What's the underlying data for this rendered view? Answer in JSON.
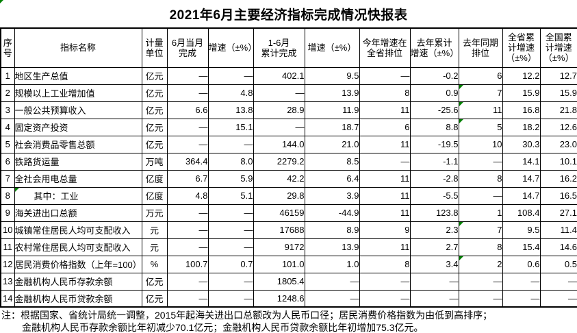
{
  "title": "2021年6月主要经济指标完成情况快报表",
  "table": {
    "headers": [
      "序\n号",
      "指标名称",
      "计量\n单位",
      "6月当月\n完成",
      "增速（±%）",
      "1-6月\n累计完成",
      "增速（±%）",
      "今年增速在\n全省排位",
      "去年累计\n增速（±%）",
      "去年同期\n排位",
      "全省累\n计增速\n（±%）",
      "全国累\n计增速\n（±%）"
    ],
    "rows": [
      {
        "no": "1",
        "name": "地区生产总值",
        "unit": "亿元",
        "indent": false,
        "values": [
          "—",
          "—",
          "402.1",
          "9.5",
          "—",
          "-0.2",
          "6",
          "12.2",
          "12.7"
        ],
        "markers": []
      },
      {
        "no": "2",
        "name": "规模以上工业增加值",
        "unit": "亿元",
        "indent": false,
        "values": [
          "—",
          "4.8",
          "—",
          "13.9",
          "8",
          "0.9",
          "7",
          "15.9",
          "15.9"
        ],
        "markers": [
          9
        ]
      },
      {
        "no": "3",
        "name": "一般公共预算收入",
        "unit": "亿元",
        "indent": false,
        "values": [
          "6.6",
          "13.8",
          "28.9",
          "11.9",
          "11",
          "-25.6",
          "11",
          "16.8",
          "21.8"
        ],
        "markers": [
          9
        ]
      },
      {
        "no": "4",
        "name": "固定资产投资",
        "unit": "亿元",
        "indent": false,
        "values": [
          "—",
          "15.1",
          "—",
          "18.7",
          "6",
          "8.8",
          "5",
          "18.2",
          "12.6"
        ],
        "markers": [
          9
        ]
      },
      {
        "no": "5",
        "name": "社会消费品零售总额",
        "unit": "亿元",
        "indent": false,
        "values": [
          "—",
          "—",
          "144.0",
          "21.0",
          "11",
          "-19.5",
          "10",
          "30.3",
          "23.0"
        ],
        "markers": []
      },
      {
        "no": "6",
        "name": "铁路货运量",
        "unit": "万吨",
        "indent": false,
        "values": [
          "364.4",
          "8.0",
          "2279.2",
          "8.5",
          "—",
          "-1.1",
          "—",
          "14.1",
          "10.1"
        ],
        "markers": []
      },
      {
        "no": "7",
        "name": "全社会用电总量",
        "unit": "亿度",
        "indent": false,
        "values": [
          "6.7",
          "5.9",
          "42.2",
          "6.4",
          "11",
          "-2.8",
          "8",
          "14.7",
          "16.2"
        ],
        "markers": []
      },
      {
        "no": "8",
        "name": "其中：工业",
        "unit": "亿度",
        "indent": true,
        "values": [
          "4.8",
          "5.1",
          "29.8",
          "3.9",
          "11",
          "-5.5",
          "—",
          "14.7",
          "16.5"
        ],
        "markers": [
          1
        ]
      },
      {
        "no": "9",
        "name": "海关进出口总额",
        "unit": "万元",
        "indent": false,
        "values": [
          "—",
          "—",
          "46159",
          "-44.9",
          "11",
          "123.8",
          "1",
          "108.4",
          "27.1"
        ],
        "markers": []
      },
      {
        "no": "10",
        "name": "城镇常住居民人均可支配收入",
        "unit": "元",
        "indent": false,
        "values": [
          "—",
          "—",
          "17688",
          "8.9",
          "9",
          "2.3",
          "7",
          "9.5",
          "11.4"
        ],
        "markers": [
          9
        ]
      },
      {
        "no": "11",
        "name": "农村常住居民人均可支配收入",
        "unit": "元",
        "indent": false,
        "values": [
          "—",
          "—",
          "9172",
          "13.9",
          "11",
          "2.7",
          "8",
          "15.4",
          "14.6"
        ],
        "markers": []
      },
      {
        "no": "12",
        "name": "居民消费价格指数（上年=100）",
        "unit": "%",
        "indent": false,
        "values": [
          "100.7",
          "0.7",
          "101.0",
          "1.0",
          "8",
          "3.4",
          "2",
          "0.6",
          "0.5"
        ],
        "markers": [
          9
        ]
      },
      {
        "no": "13",
        "name": "金融机构人民币存款余额",
        "unit": "亿元",
        "indent": false,
        "values": [
          "—",
          "—",
          "1805.4",
          "—",
          "—",
          "—",
          "—",
          "—",
          "—"
        ],
        "markers": []
      },
      {
        "no": "14",
        "name": "金融机构人民币贷款余额",
        "unit": "亿元",
        "indent": false,
        "values": [
          "—",
          "—",
          "1248.6",
          "—",
          "—",
          "—",
          "—",
          "—",
          "—"
        ],
        "markers": []
      }
    ]
  },
  "notes": [
    "注：根据国家、省统计局统一调整，2015年起海关进出口总额改为人民币口径；居民消费价格指数为由低到高排序；",
    "金融机构人民币存款余额比年初减少70.1亿元；金融机构人民币贷款余额比年初增加75.3亿元。"
  ],
  "icons": {
    "page_corner_marker": "green-triangle",
    "cell_error_marker": "green-triangle"
  },
  "colors": {
    "marker_green": "#008000",
    "border": "#000000",
    "text": "#000000",
    "background": "#ffffff"
  }
}
